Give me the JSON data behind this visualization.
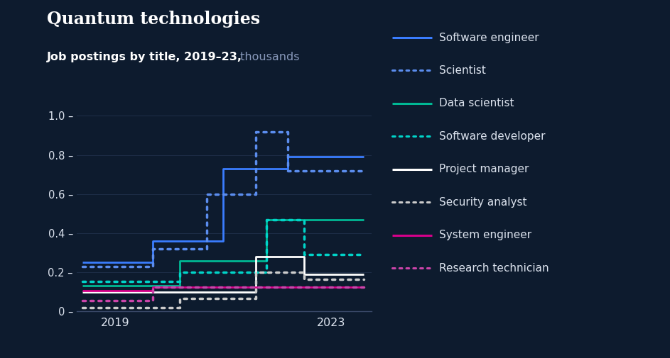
{
  "title": "Quantum technologies",
  "subtitle_bold": "Job postings by title, 2019–23,",
  "subtitle_light": " thousands",
  "bg_color": "#0d1b2e",
  "text_color": "#dce3ee",
  "subtitle_light_color": "#8899bb",
  "axis_color": "#2a3a5a",
  "grid_color": "#1e2e48",
  "ylim": [
    0,
    1.08
  ],
  "yticks": [
    0,
    0.2,
    0.4,
    0.6,
    0.8,
    1.0
  ],
  "ytick_labels": [
    "0 –",
    "0.2 –",
    "0.4 –",
    "0.6 –",
    "0.8 –",
    "1.0 –"
  ],
  "xticks": [
    2019,
    2023
  ],
  "series": [
    {
      "label": "Software engineer",
      "color": "#3a7dff",
      "linestyle": "solid",
      "linewidth": 2.0,
      "x": [
        2018.4,
        2019.7,
        2019.7,
        2021.0,
        2021.0,
        2022.2,
        2022.2,
        2023.6
      ],
      "y": [
        0.25,
        0.25,
        0.36,
        0.36,
        0.73,
        0.73,
        0.79,
        0.79
      ]
    },
    {
      "label": "Scientist",
      "color": "#5b8dee",
      "linestyle": "dotted",
      "linewidth": 2.5,
      "x": [
        2018.4,
        2019.7,
        2019.7,
        2020.7,
        2020.7,
        2021.6,
        2021.6,
        2022.2,
        2022.2,
        2023.6
      ],
      "y": [
        0.23,
        0.23,
        0.32,
        0.32,
        0.6,
        0.6,
        0.92,
        0.92,
        0.72,
        0.72
      ]
    },
    {
      "label": "Data scientist",
      "color": "#00b894",
      "linestyle": "solid",
      "linewidth": 2.0,
      "x": [
        2018.4,
        2020.2,
        2020.2,
        2021.8,
        2021.8,
        2023.6
      ],
      "y": [
        0.13,
        0.13,
        0.26,
        0.26,
        0.47,
        0.47
      ]
    },
    {
      "label": "Software developer",
      "color": "#00d4c8",
      "linestyle": "dotted",
      "linewidth": 2.5,
      "x": [
        2018.4,
        2020.2,
        2020.2,
        2021.8,
        2021.8,
        2022.5,
        2022.5,
        2023.6
      ],
      "y": [
        0.155,
        0.155,
        0.2,
        0.2,
        0.47,
        0.47,
        0.29,
        0.29
      ]
    },
    {
      "label": "Project manager",
      "color": "#ffffff",
      "linestyle": "solid",
      "linewidth": 2.0,
      "x": [
        2018.4,
        2021.6,
        2021.6,
        2022.5,
        2022.5,
        2023.6
      ],
      "y": [
        0.1,
        0.1,
        0.28,
        0.28,
        0.19,
        0.19
      ]
    },
    {
      "label": "Security analyst",
      "color": "#cccccc",
      "linestyle": "dotted",
      "linewidth": 2.5,
      "x": [
        2018.4,
        2020.2,
        2020.2,
        2021.6,
        2021.6,
        2022.5,
        2022.5,
        2023.6
      ],
      "y": [
        0.02,
        0.02,
        0.065,
        0.065,
        0.2,
        0.2,
        0.165,
        0.165
      ]
    },
    {
      "label": "System engineer",
      "color": "#d6008a",
      "linestyle": "solid",
      "linewidth": 2.0,
      "x": [
        2018.4,
        2019.7,
        2019.7,
        2023.6
      ],
      "y": [
        0.105,
        0.105,
        0.125,
        0.125
      ]
    },
    {
      "label": "Research technician",
      "color": "#cc44aa",
      "linestyle": "dotted",
      "linewidth": 2.5,
      "x": [
        2018.4,
        2019.7,
        2019.7,
        2023.6
      ],
      "y": [
        0.055,
        0.055,
        0.125,
        0.125
      ]
    }
  ],
  "legend_items": [
    {
      "label": "Software engineer",
      "color": "#3a7dff",
      "ls": "solid"
    },
    {
      "label": "Scientist",
      "color": "#5b8dee",
      "ls": "dotted"
    },
    {
      "label": "Data scientist",
      "color": "#00b894",
      "ls": "solid"
    },
    {
      "label": "Software developer",
      "color": "#00d4c8",
      "ls": "dotted"
    },
    {
      "label": "Project manager",
      "color": "#ffffff",
      "ls": "solid"
    },
    {
      "label": "Security analyst",
      "color": "#cccccc",
      "ls": "dotted"
    },
    {
      "label": "System engineer",
      "color": "#d6008a",
      "ls": "solid"
    },
    {
      "label": "Research technician",
      "color": "#cc44aa",
      "ls": "dotted"
    }
  ]
}
